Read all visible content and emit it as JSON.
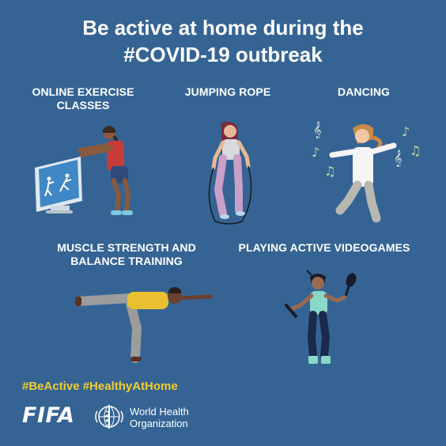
{
  "title": {
    "line1": "Be active at home during the",
    "line2": "#COVID-19 outbreak"
  },
  "activities": [
    {
      "label_line1": "ONLINE EXERCISE",
      "label_line2": "CLASSES"
    },
    {
      "label_line1": "JUMPING ROPE",
      "label_line2": ""
    },
    {
      "label_line1": "DANCING",
      "label_line2": ""
    },
    {
      "label_line1": "MUSCLE STRENGTH AND",
      "label_line2": "BALANCE TRAINING"
    },
    {
      "label_line1": "PLAYING ACTIVE VIDEOGAMES",
      "label_line2": ""
    }
  ],
  "hashtags": "#BeActive #HealthyAtHome",
  "logos": {
    "fifa": "FIFA",
    "who_line1": "World Health",
    "who_line2": "Organization"
  },
  "colors": {
    "background": "#356494",
    "hashtag": "#f2cd2e",
    "text": "#ffffff"
  }
}
